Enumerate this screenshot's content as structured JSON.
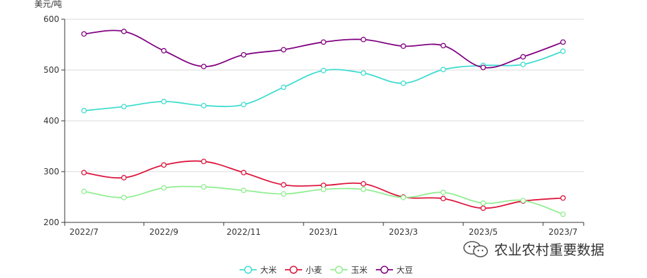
{
  "chart_data": {
    "type": "line",
    "ylabel": "美元/吨",
    "ylim": [
      200,
      600
    ],
    "yticks": [
      200,
      300,
      400,
      500,
      600
    ],
    "x": [
      "2022/7",
      "2022/8",
      "2022/9",
      "2022/10",
      "2022/11",
      "2022/12",
      "2023/1",
      "2023/2",
      "2023/3",
      "2023/4",
      "2023/5",
      "2023/6",
      "2023/7"
    ],
    "xtick_labels": [
      "2022/7",
      "2022/9",
      "2022/11",
      "2023/1",
      "2023/3",
      "2023/5",
      "2023/7"
    ],
    "grid": true,
    "legend_position": "bottom",
    "series": [
      {
        "name": "大米",
        "color": "#40dcd0",
        "values": [
          420,
          428,
          438,
          430,
          432,
          466,
          499,
          494,
          474,
          501,
          509,
          511,
          537
        ]
      },
      {
        "name": "小麦",
        "color": "#dc143c",
        "values": [
          298,
          288,
          313,
          320,
          298,
          274,
          273,
          276,
          250,
          247,
          228,
          242,
          248
        ]
      },
      {
        "name": "玉米",
        "color": "#90ee90",
        "values": [
          261,
          249,
          268,
          270,
          263,
          256,
          265,
          265,
          249,
          259,
          238,
          243,
          216
        ]
      },
      {
        "name": "大豆",
        "color": "#800080",
        "values": [
          571,
          576,
          538,
          507,
          530,
          540,
          555,
          560,
          547,
          548,
          505,
          526,
          555
        ]
      }
    ]
  },
  "watermark": {
    "text": "农业农村重要数据",
    "icon": "wechat-icon"
  }
}
